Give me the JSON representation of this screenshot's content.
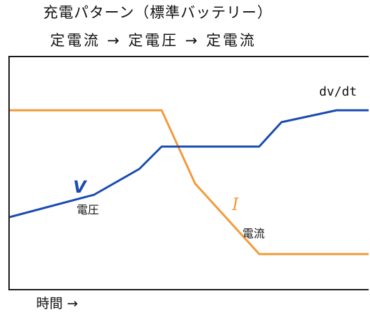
{
  "title": "充電パターン（標準バッテリー）",
  "subtitle": "定電流 → 定電圧 → 定電流",
  "x_label": "時間 →",
  "colors": {
    "voltage": "#1a4bb0",
    "current": "#f29a3a",
    "frame": "#1a1a1a"
  },
  "labels": {
    "dvdt": "dv/dt",
    "v_symbol": "V",
    "v_name": "電圧",
    "i_symbol": "I",
    "i_name": "電流"
  }
}
